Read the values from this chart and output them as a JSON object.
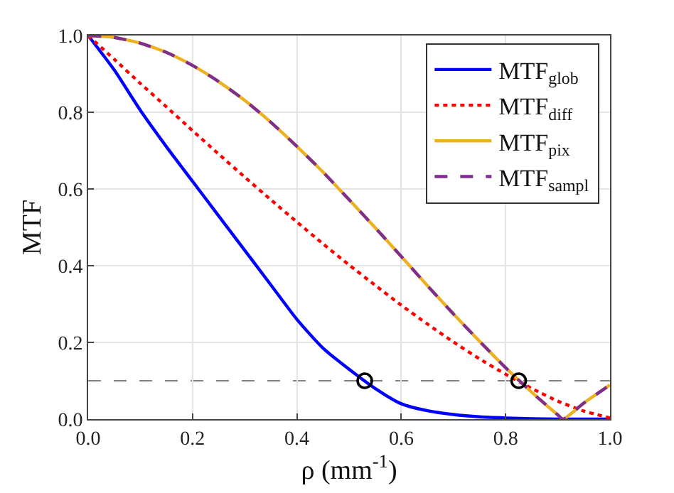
{
  "chart_data": {
    "type": "line",
    "xlabel": "ρ (mm$^{-1}$)",
    "ylabel": "MTF",
    "xlim": [
      0,
      1
    ],
    "ylim": [
      0,
      1
    ],
    "xticks": [
      {
        "value": 0,
        "label": "0.0"
      },
      {
        "value": 0.2,
        "label": "0.2"
      },
      {
        "value": 0.4,
        "label": "0.4"
      },
      {
        "value": 0.6,
        "label": "0.6"
      },
      {
        "value": 0.8,
        "label": "0.8"
      },
      {
        "value": 1,
        "label": "1.0"
      }
    ],
    "yticks": [
      {
        "value": 0,
        "label": "0.0"
      },
      {
        "value": 0.2,
        "label": "0.2"
      },
      {
        "value": 0.4,
        "label": "0.4"
      },
      {
        "value": 0.6,
        "label": "0.6"
      },
      {
        "value": 0.8,
        "label": "0.8"
      },
      {
        "value": 1,
        "label": "1.0"
      }
    ],
    "grid": true,
    "legend": "top right",
    "x": [
      0,
      0.05,
      0.1,
      0.15,
      0.2,
      0.25,
      0.3,
      0.35,
      0.4,
      0.45,
      0.5,
      0.55,
      0.6,
      0.65,
      0.7,
      0.75,
      0.8,
      0.85,
      0.9,
      0.95,
      1.0
    ],
    "series": [
      {
        "name": "MTF$_{glob}$",
        "color": "#0000ff",
        "line_style": "solid",
        "values": [
          1,
          0.91,
          0.805,
          0.71,
          0.62,
          0.53,
          0.44,
          0.35,
          0.26,
          0.185,
          0.13,
          0.08,
          0.04,
          0.022,
          0.012,
          0.006,
          0.003,
          0.001,
          0,
          0,
          0
        ]
      },
      {
        "name": "MTF$_{diff}$",
        "color": "#ff0000",
        "line_style": "dotted",
        "values": [
          1,
          0.938,
          0.875,
          0.814,
          0.752,
          0.691,
          0.631,
          0.572,
          0.514,
          0.457,
          0.402,
          0.349,
          0.297,
          0.248,
          0.201,
          0.157,
          0.117,
          0.08,
          0.047,
          0.021,
          0.003
        ]
      },
      {
        "name": "MTF$_{pix}$",
        "color": "#edb120",
        "line_style": "solid",
        "x": [
          0,
          0.05,
          0.1,
          0.15,
          0.2,
          0.25,
          0.3,
          0.35,
          0.4,
          0.45,
          0.5,
          0.55,
          0.6,
          0.65,
          0.7,
          0.75,
          0.8,
          0.85,
          0.9,
          0.91,
          0.95,
          1.0
        ],
        "values": [
          1,
          0.995,
          0.98,
          0.956,
          0.922,
          0.88,
          0.831,
          0.774,
          0.711,
          0.644,
          0.572,
          0.499,
          0.424,
          0.348,
          0.274,
          0.203,
          0.134,
          0.07,
          0.011,
          0,
          0.042,
          0.089
        ]
      },
      {
        "name": "MTF$_{sampl}$",
        "color": "#7e2f8e",
        "line_style": "dashed",
        "x": [
          0,
          0.05,
          0.1,
          0.15,
          0.2,
          0.25,
          0.3,
          0.35,
          0.4,
          0.45,
          0.5,
          0.55,
          0.6,
          0.65,
          0.7,
          0.75,
          0.8,
          0.85,
          0.9,
          0.91,
          0.95,
          1.0
        ],
        "values": [
          1,
          0.995,
          0.98,
          0.956,
          0.922,
          0.88,
          0.831,
          0.774,
          0.711,
          0.644,
          0.572,
          0.499,
          0.424,
          0.348,
          0.274,
          0.203,
          0.134,
          0.07,
          0.011,
          0,
          0.042,
          0.089
        ]
      },
      {
        "type": "scatter",
        "marker": "circle",
        "color": "#000000",
        "x": [
          0.53,
          0.825
        ],
        "values": [
          0.1,
          0.1
        ]
      }
    ],
    "ref_lines": [
      {
        "axis": "y",
        "value": 0.1,
        "color": "#808080",
        "line_style": "dashed"
      }
    ]
  }
}
